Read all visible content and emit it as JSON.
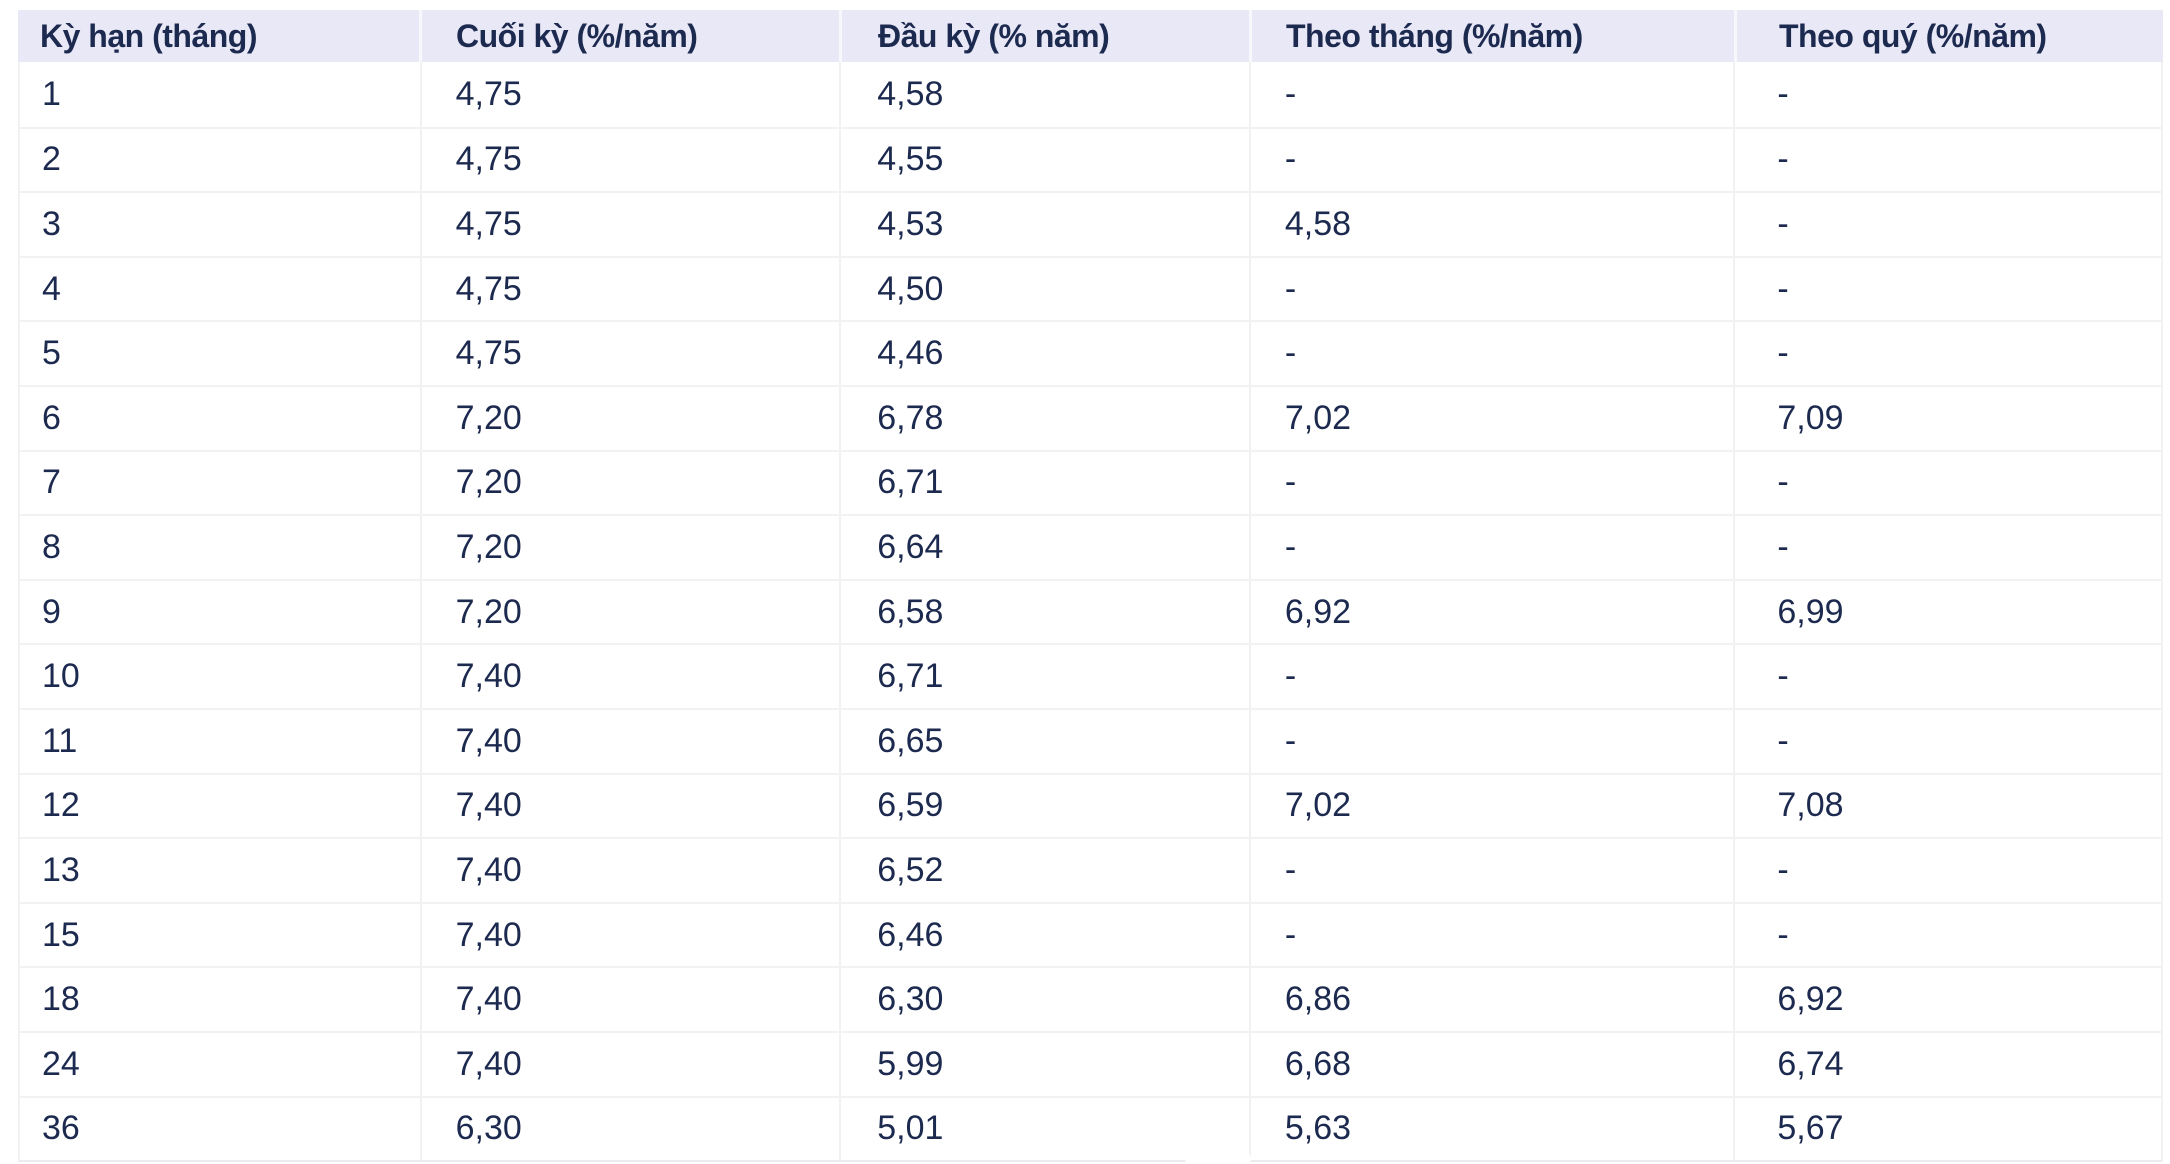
{
  "colors": {
    "header_background": "#E9E8F7",
    "text": "#1D2A4F",
    "row_separator": "#F2F2F3",
    "header_cell_divider": "#F7F7FC",
    "table_outer_border": "#ECECEE",
    "row_background": "#FFFFFF"
  },
  "chart_data": {
    "type": "table",
    "title": "",
    "columns": [
      "Kỳ hạn (tháng)",
      "Cuối kỳ (%/năm)",
      "Đầu kỳ (% năm)",
      "Theo tháng (%/năm)",
      "Theo quý (%/năm)"
    ],
    "rows": [
      [
        "1",
        "4,75",
        "4,58",
        "-",
        "-"
      ],
      [
        "2",
        "4,75",
        "4,55",
        "-",
        "-"
      ],
      [
        "3",
        "4,75",
        "4,53",
        "4,58",
        "-"
      ],
      [
        "4",
        "4,75",
        "4,50",
        "-",
        "-"
      ],
      [
        "5",
        "4,75",
        "4,46",
        "-",
        "-"
      ],
      [
        "6",
        "7,20",
        "6,78",
        "7,02",
        "7,09"
      ],
      [
        "7",
        "7,20",
        "6,71",
        "-",
        "-"
      ],
      [
        "8",
        "7,20",
        "6,64",
        "-",
        "-"
      ],
      [
        "9",
        "7,20",
        "6,58",
        "6,92",
        "6,99"
      ],
      [
        "10",
        "7,40",
        "6,71",
        "-",
        "-"
      ],
      [
        "11",
        "7,40",
        "6,65",
        "-",
        "-"
      ],
      [
        "12",
        "7,40",
        "6,59",
        "7,02",
        "7,08"
      ],
      [
        "13",
        "7,40",
        "6,52",
        "-",
        "-"
      ],
      [
        "15",
        "7,40",
        "6,46",
        "-",
        "-"
      ],
      [
        "18",
        "7,40",
        "6,30",
        "6,86",
        "6,92"
      ],
      [
        "24",
        "7,40",
        "5,99",
        "6,68",
        "6,74"
      ],
      [
        "36",
        "6,30",
        "5,01",
        "5,63",
        "5,67"
      ]
    ]
  }
}
